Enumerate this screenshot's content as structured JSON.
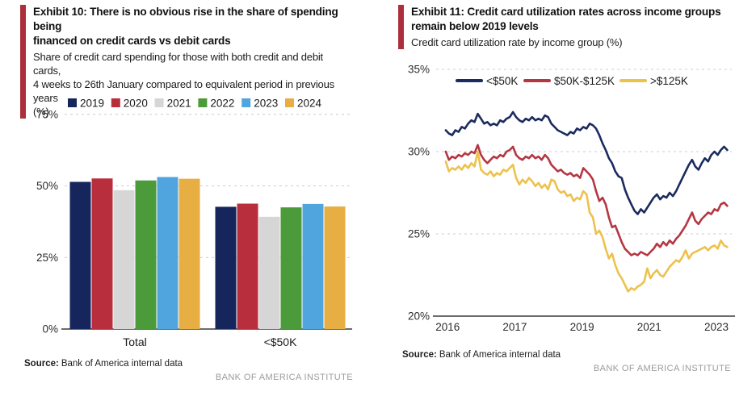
{
  "accent_color": "#ab303c",
  "panels": {
    "left": {
      "title": "Exhibit 10: There is no obvious rise in the share of spending being\nfinanced on credit cards vs debit cards",
      "subtitle": "Share of credit card spending for those with both credit and debit cards,\n4 weeks to 26th January compared to equivalent period in previous years\n(%)",
      "source_label": "Source:",
      "source_text": "Bank of America internal data",
      "institute": "BANK OF AMERICA INSTITUTE"
    },
    "right": {
      "title": "Exhibit 11: Credit card utilization rates across income groups\nremain below 2019 levels",
      "subtitle": "Credit card utilization rate by income group (%)",
      "source_label": "Source:",
      "source_text": "Bank of America internal data",
      "institute": "BANK OF AMERICA INSTITUTE"
    }
  },
  "chart_data": [
    {
      "type": "bar",
      "title": "Share of credit card spending for those with both credit and debit cards (%)",
      "categories": [
        "Total",
        "<$50K"
      ],
      "series": [
        {
          "name": "2019",
          "color": "#16265c",
          "values": [
            51.4,
            42.7
          ]
        },
        {
          "name": "2020",
          "color": "#b92e3c",
          "values": [
            52.6,
            43.8
          ]
        },
        {
          "name": "2021",
          "color": "#d6d6d6",
          "values": [
            48.5,
            39.2
          ]
        },
        {
          "name": "2022",
          "color": "#4c9b3a",
          "values": [
            51.9,
            42.5
          ]
        },
        {
          "name": "2023",
          "color": "#51a5de",
          "values": [
            53.1,
            43.7
          ]
        },
        {
          "name": "2024",
          "color": "#e7af43",
          "values": [
            52.5,
            42.8
          ]
        }
      ],
      "y_ticks": [
        0,
        25,
        50,
        75
      ],
      "y_tick_suffix": "%",
      "ylim": [
        0,
        80
      ],
      "grid": "dashed-horizontal",
      "legend_position": "top"
    },
    {
      "type": "line",
      "title": "Credit card utilization rate by income group (%)",
      "x_start": 2015.95,
      "x_step": 0.08333,
      "xlim": [
        2015.7,
        2023.4
      ],
      "x_ticks": [
        {
          "pos": 2016.0,
          "label": "2016"
        },
        {
          "pos": 2017.75,
          "label": "2017"
        },
        {
          "pos": 2019.5,
          "label": "2019"
        },
        {
          "pos": 2021.25,
          "label": "2021"
        },
        {
          "pos": 2023.0,
          "label": "2023"
        }
      ],
      "y_ticks": [
        20,
        25,
        30,
        35
      ],
      "y_tick_suffix": "%",
      "ylim": [
        20,
        35.3
      ],
      "grid": "dashed-horizontal",
      "legend_position": "top",
      "series": [
        {
          "name": "<$50K",
          "color": "#1b2b5e",
          "values": [
            31.3,
            31.1,
            31.0,
            31.3,
            31.2,
            31.5,
            31.4,
            31.7,
            31.9,
            31.8,
            32.3,
            32.0,
            31.7,
            31.8,
            31.6,
            31.7,
            31.6,
            31.9,
            31.8,
            32.0,
            32.1,
            32.4,
            32.1,
            31.9,
            31.8,
            32.0,
            31.9,
            32.1,
            31.9,
            32.0,
            31.9,
            32.2,
            32.1,
            31.7,
            31.5,
            31.3,
            31.2,
            31.1,
            31.0,
            31.2,
            31.1,
            31.4,
            31.3,
            31.5,
            31.4,
            31.7,
            31.6,
            31.4,
            31.0,
            30.5,
            30.1,
            29.6,
            29.3,
            28.8,
            28.5,
            28.4,
            27.7,
            27.2,
            26.8,
            26.4,
            26.2,
            26.5,
            26.3,
            26.6,
            26.9,
            27.2,
            27.4,
            27.1,
            27.3,
            27.2,
            27.5,
            27.3,
            27.6,
            28.0,
            28.4,
            28.8,
            29.2,
            29.5,
            29.1,
            28.9,
            29.3,
            29.6,
            29.4,
            29.8,
            30.0,
            29.8,
            30.1,
            30.3,
            30.1
          ]
        },
        {
          "name": "$50K-$125K",
          "color": "#b43743",
          "values": [
            30.0,
            29.5,
            29.7,
            29.6,
            29.8,
            29.7,
            29.9,
            29.8,
            30.0,
            29.9,
            30.4,
            29.8,
            29.5,
            29.3,
            29.5,
            29.7,
            29.6,
            29.8,
            29.7,
            30.0,
            30.1,
            30.3,
            29.8,
            29.6,
            29.5,
            29.7,
            29.6,
            29.8,
            29.6,
            29.7,
            29.5,
            29.8,
            29.6,
            29.2,
            29.0,
            28.8,
            28.9,
            28.7,
            28.6,
            28.7,
            28.5,
            28.6,
            28.4,
            29.0,
            28.8,
            28.6,
            28.3,
            27.6,
            27.0,
            27.2,
            26.8,
            26.0,
            25.4,
            25.5,
            25.0,
            24.5,
            24.1,
            23.9,
            23.7,
            23.8,
            23.7,
            23.9,
            23.8,
            23.7,
            23.9,
            24.1,
            24.4,
            24.2,
            24.5,
            24.3,
            24.6,
            24.4,
            24.7,
            24.9,
            25.2,
            25.5,
            25.9,
            26.3,
            25.8,
            25.6,
            25.9,
            26.1,
            26.3,
            26.2,
            26.5,
            26.4,
            26.8,
            26.9,
            26.7
          ]
        },
        {
          "name": ">$125K",
          "color": "#ecc24d",
          "values": [
            29.4,
            28.8,
            29.0,
            28.9,
            29.1,
            28.9,
            29.2,
            29.0,
            29.3,
            29.1,
            30.0,
            28.9,
            28.7,
            28.6,
            28.8,
            28.5,
            28.7,
            28.6,
            28.9,
            28.8,
            29.0,
            29.2,
            28.4,
            28.0,
            28.3,
            28.1,
            28.4,
            28.2,
            27.9,
            28.1,
            27.8,
            28.0,
            27.7,
            28.3,
            28.2,
            27.7,
            27.5,
            27.6,
            27.3,
            27.4,
            27.0,
            27.2,
            27.1,
            27.6,
            27.4,
            26.3,
            26.0,
            25.0,
            25.2,
            24.8,
            24.1,
            23.5,
            23.8,
            23.1,
            22.6,
            22.3,
            21.9,
            21.5,
            21.7,
            21.6,
            21.8,
            21.9,
            22.1,
            22.9,
            22.3,
            22.6,
            22.8,
            22.5,
            22.4,
            22.7,
            23.0,
            23.2,
            23.4,
            23.3,
            23.6,
            24.0,
            23.5,
            23.8,
            23.9,
            24.0,
            24.1,
            24.2,
            24.0,
            24.2,
            24.3,
            24.1,
            24.6,
            24.3,
            24.2
          ]
        }
      ]
    }
  ]
}
